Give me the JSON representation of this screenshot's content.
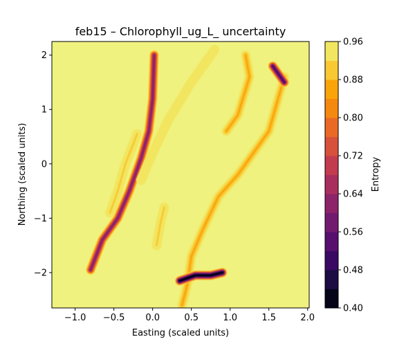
{
  "chart_data": {
    "type": "heatmap",
    "subtype": "filled-contour",
    "title": "feb15 – Chlorophyll_ug_L_ uncertainty",
    "xlabel": "Easting (scaled units)",
    "ylabel": "Northing (scaled units)",
    "xlim": [
      -1.3,
      2.02
    ],
    "ylim": [
      -2.65,
      2.25
    ],
    "x_ticks": [
      -1.0,
      -0.5,
      0.0,
      0.5,
      1.0,
      1.5,
      2.0
    ],
    "x_tick_labels": [
      "−1.0",
      "−0.5",
      "0.0",
      "0.5",
      "1.0",
      "1.5",
      "2.0"
    ],
    "y_ticks": [
      2,
      1,
      0,
      -1,
      -2
    ],
    "y_tick_labels": [
      "2",
      "1",
      "0",
      "−1",
      "−2"
    ],
    "colorbar": {
      "label": "Entropy",
      "levels": [
        0.4,
        0.44,
        0.48,
        0.52,
        0.56,
        0.6,
        0.64,
        0.68,
        0.72,
        0.76,
        0.8,
        0.84,
        0.88,
        0.92,
        0.96
      ],
      "tick_values": [
        0.4,
        0.48,
        0.56,
        0.64,
        0.72,
        0.8,
        0.88,
        0.96
      ],
      "tick_labels": [
        "0.40",
        "0.48",
        "0.56",
        "0.64",
        "0.72",
        "0.80",
        "0.88",
        "0.96"
      ],
      "colors": [
        "#050418",
        "#1c0c43",
        "#3a0963",
        "#57106e",
        "#721a6e",
        "#8d2369",
        "#a92e5e",
        "#c33b4f",
        "#d8513a",
        "#ea6a25",
        "#f5890f",
        "#fba40a",
        "#f8c932",
        "#f2e661"
      ]
    },
    "background_value": 0.96,
    "background_color": "#f0f280",
    "features": [
      {
        "name": "left ridge upper",
        "path": [
          [
            0.02,
            2.0
          ],
          [
            0.0,
            1.2
          ],
          [
            -0.05,
            0.6
          ],
          [
            -0.15,
            0.1
          ],
          [
            -0.3,
            -0.5
          ],
          [
            -0.45,
            -1.0
          ],
          [
            -0.65,
            -1.4
          ],
          [
            -0.8,
            -1.95
          ]
        ],
        "min_entropy": 0.6
      },
      {
        "name": "left ridge branch",
        "path": [
          [
            -0.2,
            0.55
          ],
          [
            -0.35,
            0.0
          ],
          [
            -0.45,
            -0.5
          ],
          [
            -0.55,
            -0.9
          ]
        ],
        "min_entropy": 0.88
      },
      {
        "name": "center band",
        "path": [
          [
            0.8,
            2.1
          ],
          [
            0.5,
            1.5
          ],
          [
            0.2,
            0.8
          ],
          [
            0.0,
            0.2
          ],
          [
            -0.15,
            -0.3
          ]
        ],
        "min_entropy": 0.92
      },
      {
        "name": "right ridge",
        "path": [
          [
            1.7,
            1.6
          ],
          [
            1.5,
            0.6
          ],
          [
            1.3,
            0.2
          ],
          [
            1.1,
            -0.2
          ],
          [
            0.85,
            -0.6
          ],
          [
            0.65,
            -1.2
          ],
          [
            0.5,
            -1.7
          ],
          [
            0.45,
            -2.2
          ],
          [
            0.38,
            -2.6
          ]
        ],
        "min_entropy": 0.84
      },
      {
        "name": "right upper fork",
        "path": [
          [
            1.2,
            2.0
          ],
          [
            1.25,
            1.6
          ],
          [
            1.1,
            0.9
          ],
          [
            0.95,
            0.6
          ]
        ],
        "min_entropy": 0.84
      },
      {
        "name": "bottom hotspot",
        "path": [
          [
            0.35,
            -2.15
          ],
          [
            0.55,
            -2.05
          ],
          [
            0.75,
            -2.05
          ],
          [
            0.9,
            -2.0
          ]
        ],
        "min_entropy": 0.4
      },
      {
        "name": "top-right hotspot",
        "path": [
          [
            1.55,
            1.8
          ],
          [
            1.65,
            1.6
          ],
          [
            1.7,
            1.5
          ]
        ],
        "min_entropy": 0.52
      },
      {
        "name": "isolated patch",
        "path": [
          [
            0.15,
            -0.8
          ],
          [
            0.1,
            -1.1
          ],
          [
            0.05,
            -1.5
          ]
        ],
        "min_entropy": 0.88
      }
    ]
  }
}
